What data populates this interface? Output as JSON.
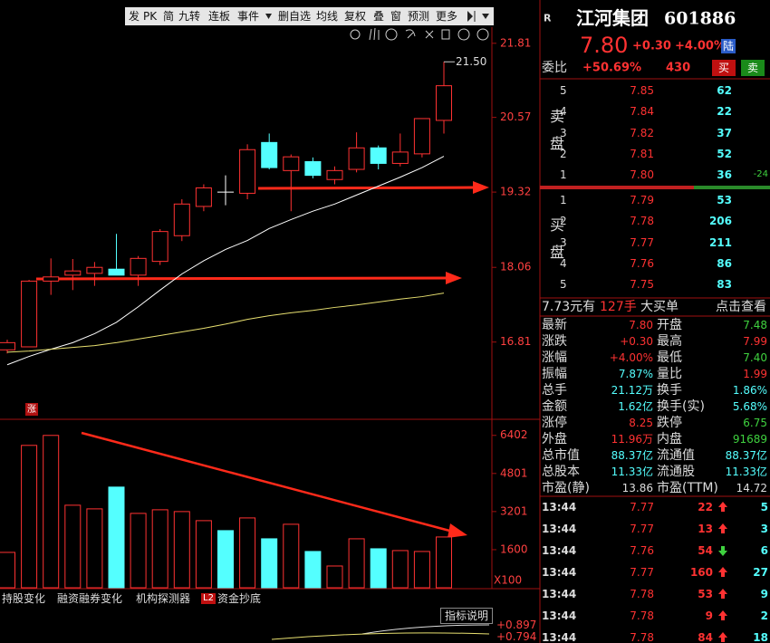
{
  "toolbar": [
    "发",
    "PK",
    "简",
    "九转",
    "连板",
    "事件",
    "删自选",
    "均线",
    "复权",
    "叠",
    "窗",
    "预测",
    "更多"
  ],
  "chart": {
    "type": "candlestick",
    "candles": [
      {
        "open": 16.68,
        "high": 16.85,
        "low": 16.62,
        "close": 16.8
      },
      {
        "open": 16.73,
        "high": 17.85,
        "low": 16.73,
        "close": 17.83
      },
      {
        "open": 17.83,
        "high": 18.21,
        "low": 17.6,
        "close": 17.9
      },
      {
        "open": 17.93,
        "high": 18.2,
        "low": 17.68,
        "close": 18.0
      },
      {
        "open": 17.96,
        "high": 18.15,
        "low": 17.75,
        "close": 18.06
      },
      {
        "open": 18.03,
        "high": 18.62,
        "low": 17.93,
        "close": 17.93
      },
      {
        "open": 17.93,
        "high": 18.25,
        "low": 17.75,
        "close": 18.21
      },
      {
        "open": 18.16,
        "high": 18.7,
        "low": 18.1,
        "close": 18.66
      },
      {
        "open": 18.59,
        "high": 19.2,
        "low": 18.5,
        "close": 19.12
      },
      {
        "open": 19.08,
        "high": 19.45,
        "low": 19.0,
        "close": 19.39
      },
      {
        "open": 19.32,
        "high": 19.6,
        "low": 19.1,
        "close": 19.32
      },
      {
        "open": 19.3,
        "high": 20.12,
        "low": 19.2,
        "close": 20.03
      },
      {
        "open": 20.15,
        "high": 20.3,
        "low": 19.7,
        "close": 19.73
      },
      {
        "open": 19.68,
        "high": 19.95,
        "low": 19.0,
        "close": 19.91
      },
      {
        "open": 19.83,
        "high": 19.9,
        "low": 19.55,
        "close": 19.6
      },
      {
        "open": 19.53,
        "high": 19.75,
        "low": 19.45,
        "close": 19.68
      },
      {
        "open": 19.7,
        "high": 20.32,
        "low": 19.65,
        "close": 20.06
      },
      {
        "open": 20.06,
        "high": 20.1,
        "low": 19.7,
        "close": 19.8
      },
      {
        "open": 19.8,
        "high": 20.3,
        "low": 19.75,
        "close": 19.99
      },
      {
        "open": 19.96,
        "high": 20.55,
        "low": 19.9,
        "close": 20.55
      },
      {
        "open": 20.52,
        "high": 21.5,
        "low": 20.3,
        "close": 21.1
      }
    ],
    "ma_series": [
      {
        "color": "#ffffff",
        "values": [
          16.43,
          16.57,
          16.69,
          16.8,
          16.95,
          17.14,
          17.4,
          17.68,
          17.95,
          18.17,
          18.36,
          18.51,
          18.71,
          18.86,
          19.0,
          19.12,
          19.27,
          19.42,
          19.57,
          19.73,
          19.92
        ]
      },
      {
        "color": "#e8e070",
        "values": [
          16.64,
          16.66,
          16.69,
          16.72,
          16.75,
          16.8,
          16.86,
          16.92,
          16.98,
          17.04,
          17.11,
          17.19,
          17.25,
          17.3,
          17.34,
          17.39,
          17.43,
          17.48,
          17.53,
          17.57,
          17.63
        ]
      }
    ],
    "up_color": "#ff3232",
    "down_color": "#54ffff",
    "flat_color": "#ffffff",
    "ylim": [
      15.79,
      22.08
    ],
    "yticks": [
      21.81,
      20.57,
      19.32,
      18.06,
      16.81
    ],
    "high_label": "21.50",
    "marker": "涨",
    "volume": {
      "values": [
        1486,
        5981,
        6400,
        3467,
        3314,
        4229,
        3124,
        3276,
        3200,
        2819,
        2400,
        2933,
        2057,
        2667,
        1524,
        914,
        2057,
        1638,
        1562,
        1524,
        2133
      ],
      "ylim": [
        0,
        7000
      ],
      "yticks": [
        6402,
        4801,
        3201,
        1600
      ],
      "unit_label": "X100"
    }
  },
  "indicator_tabs": [
    "持股变化",
    "融资融券变化",
    "机构探测器",
    "L2",
    "资金抄底"
  ],
  "indicator_button": "指标说明",
  "indicator_values": [
    "+0.897",
    "+0.794"
  ],
  "quote": {
    "badge": "R",
    "name": "江河集团",
    "code": "601886",
    "price": "7.80",
    "change": "+0.30",
    "change_pct": "+4.00%",
    "market": "陆",
    "ratio_label": "委比",
    "ratio": "+50.69%",
    "ratio_diff": "430",
    "buy_button": "买",
    "sell_button": "卖"
  },
  "order_book": {
    "sell_label": "卖盘",
    "buy_label": "买盘",
    "sell": [
      {
        "level": "5",
        "price": "7.85",
        "volume": "62"
      },
      {
        "level": "4",
        "price": "7.84",
        "volume": "22"
      },
      {
        "level": "3",
        "price": "7.82",
        "volume": "37"
      },
      {
        "level": "2",
        "price": "7.81",
        "volume": "52"
      },
      {
        "level": "1",
        "price": "7.80",
        "volume": "36",
        "change": "-24"
      }
    ],
    "buy": [
      {
        "level": "1",
        "price": "7.79",
        "volume": "53"
      },
      {
        "level": "2",
        "price": "7.78",
        "volume": "206"
      },
      {
        "level": "3",
        "price": "7.77",
        "volume": "211"
      },
      {
        "level": "4",
        "price": "7.76",
        "volume": "86"
      },
      {
        "level": "5",
        "price": "7.75",
        "volume": "83"
      }
    ]
  },
  "big_order": {
    "price": "7.73元有",
    "volume": "127手",
    "label": "大买单",
    "link": "点击查看"
  },
  "stats": [
    [
      {
        "label": "最新",
        "value": "7.80",
        "color": "#ff3232"
      },
      {
        "label": "开盘",
        "value": "7.48",
        "color": "#3fd23f"
      }
    ],
    [
      {
        "label": "涨跌",
        "value": "+0.30",
        "color": "#ff3232"
      },
      {
        "label": "最高",
        "value": "7.99",
        "color": "#ff3232"
      }
    ],
    [
      {
        "label": "涨幅",
        "value": "+4.00%",
        "color": "#ff3232"
      },
      {
        "label": "最低",
        "value": "7.40",
        "color": "#3fd23f"
      }
    ],
    [
      {
        "label": "振幅",
        "value": "7.87%",
        "color": "#54ffff"
      },
      {
        "label": "量比",
        "value": "1.99",
        "color": "#ff3232"
      }
    ],
    [
      {
        "label": "总手",
        "value": "21.12万",
        "color": "#54ffff"
      },
      {
        "label": "换手",
        "value": "1.86%",
        "color": "#54ffff"
      }
    ],
    [
      {
        "label": "金额",
        "value": "1.62亿",
        "color": "#54ffff"
      },
      {
        "label": "换手(实)",
        "value": "5.68%",
        "color": "#54ffff"
      }
    ],
    [
      {
        "label": "涨停",
        "value": "8.25",
        "color": "#ff3232"
      },
      {
        "label": "跌停",
        "value": "6.75",
        "color": "#3fd23f"
      }
    ],
    [
      {
        "label": "外盘",
        "value": "11.96万",
        "color": "#ff3232"
      },
      {
        "label": "内盘",
        "value": "91689",
        "color": "#3fd23f"
      }
    ],
    [
      {
        "label": "总市值",
        "value": "88.37亿",
        "color": "#54ffff"
      },
      {
        "label": "流通值",
        "value": "88.37亿",
        "color": "#54ffff"
      }
    ],
    [
      {
        "label": "总股本",
        "value": "11.33亿",
        "color": "#54ffff"
      },
      {
        "label": "流通股",
        "value": "11.33亿",
        "color": "#54ffff"
      }
    ],
    [
      {
        "label": "市盈(静)",
        "value": "13.86",
        "color": "#dddddd"
      },
      {
        "label": "市盈(TTM)",
        "value": "14.72",
        "color": "#dddddd"
      }
    ]
  ],
  "trades": [
    {
      "time": "13:44",
      "price": "7.77",
      "volume": "22",
      "dir": "up",
      "count": "5"
    },
    {
      "time": "13:44",
      "price": "7.77",
      "volume": "13",
      "dir": "up",
      "count": "3"
    },
    {
      "time": "13:44",
      "price": "7.76",
      "volume": "54",
      "dir": "down",
      "count": "6"
    },
    {
      "time": "13:44",
      "price": "7.77",
      "volume": "160",
      "dir": "up",
      "count": "27"
    },
    {
      "time": "13:44",
      "price": "7.78",
      "volume": "53",
      "dir": "up",
      "count": "9"
    },
    {
      "time": "13:44",
      "price": "7.78",
      "volume": "9",
      "dir": "up",
      "count": "2"
    },
    {
      "time": "13:44",
      "price": "7.78",
      "volume": "84",
      "dir": "up",
      "count": "18"
    }
  ]
}
